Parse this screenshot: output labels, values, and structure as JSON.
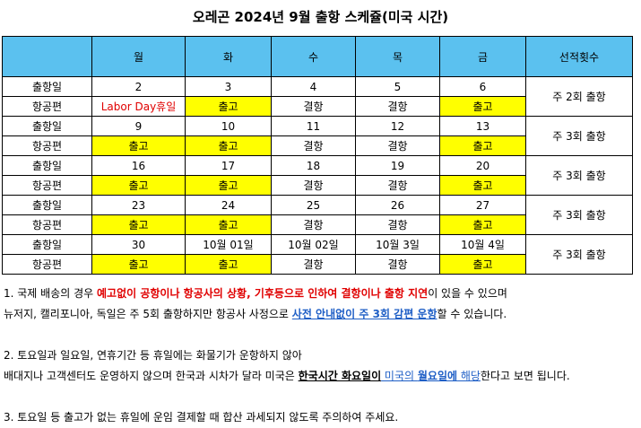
{
  "title": "오레곤 2024년 9월 출항 스케쥴(미국 시간)",
  "table": {
    "headers": [
      "",
      "월",
      "화",
      "수",
      "목",
      "금",
      "선적횟수"
    ],
    "weeks": [
      {
        "dates": [
          "출항일",
          "2",
          "3",
          "4",
          "5",
          "6"
        ],
        "flights": [
          "항공편",
          "Labor Day휴일",
          "출고",
          "결항",
          "결항",
          "출고"
        ],
        "freq": "주 2회 출항"
      },
      {
        "dates": [
          "출항일",
          "9",
          "10",
          "11",
          "12",
          "13"
        ],
        "flights": [
          "항공편",
          "출고",
          "출고",
          "결항",
          "결항",
          "출고"
        ],
        "freq": "주 3회 출항"
      },
      {
        "dates": [
          "출항일",
          "16",
          "17",
          "18",
          "19",
          "20"
        ],
        "flights": [
          "항공편",
          "출고",
          "출고",
          "결항",
          "결항",
          "출고"
        ],
        "freq": "주 3회 출항"
      },
      {
        "dates": [
          "출항일",
          "23",
          "24",
          "25",
          "26",
          "27"
        ],
        "flights": [
          "항공편",
          "출고",
          "출고",
          "결항",
          "결항",
          "출고"
        ],
        "freq": "주 3회 출항"
      },
      {
        "dates": [
          "출항일",
          "30",
          "10월 01일",
          "10월 02일",
          "10월 3일",
          "10월 4일"
        ],
        "flights": [
          "항공편",
          "출고",
          "출고",
          "결항",
          "결항",
          "출고"
        ],
        "freq": "주 3회 출항"
      }
    ]
  },
  "notes": {
    "n1_a": "1. 국제 배송의 경우 ",
    "n1_b": "예고없이 공항이나 항공사의 상황, 기후등으로 인하여 결항이나 출항 지연",
    "n1_c": "이 있을 수 있으며",
    "n2_a": "뉴저지, 캘리포니아, 독일은 주 5회 출항하지만 항공사 사정으로 ",
    "n2_b": "사전 안내없이 주 3회 감편 운항",
    "n2_c": "할 수 있습니다.",
    "n3": "2. 토요일과 일요일, 연휴기간 등 휴일에는 화물기가 운항하지 않아",
    "n4_a": "배대지나 고객센터도 운영하지 않으며 한국과 시차가 달라 미국은 ",
    "n4_b": "한국시간 화요일이",
    "n4_c": " 미국의 ",
    "n4_d": "월요일에",
    "n4_e": " 해당",
    "n4_f": "한다고 보면 됩니다.",
    "n5": "3. 토요일 등 출고가 없는 휴일에 운임 결제할 때 합산 과세되지 않도록 주의하여 주세요."
  },
  "colors": {
    "header_bg": "#5bc1ef",
    "highlight": "#ffff00",
    "red": "#e00000",
    "blue": "#1f5fc6"
  }
}
